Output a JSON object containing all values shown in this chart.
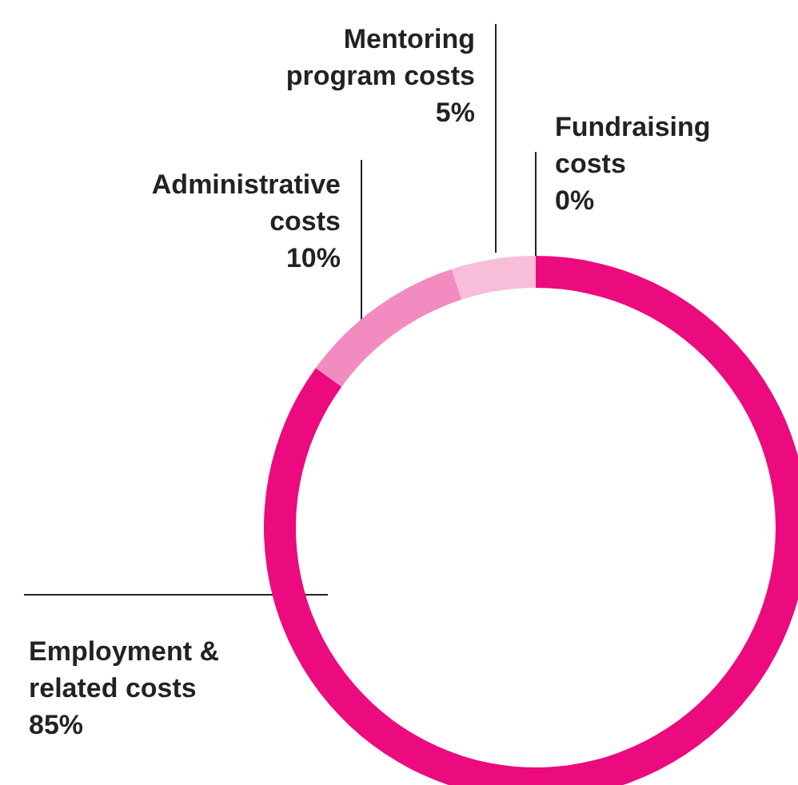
{
  "chart_data": {
    "type": "donut",
    "categories": [
      "Fundraising costs",
      "Employment & related costs",
      "Administrative costs",
      "Mentoring program costs"
    ],
    "values": [
      0,
      85,
      10,
      5
    ],
    "colors": [
      "#e4157f",
      "#ec0a7f",
      "#f28bbf",
      "#f8bdd9"
    ],
    "value_labels": [
      "0%",
      "85%",
      "10%",
      "5%"
    ]
  }
}
